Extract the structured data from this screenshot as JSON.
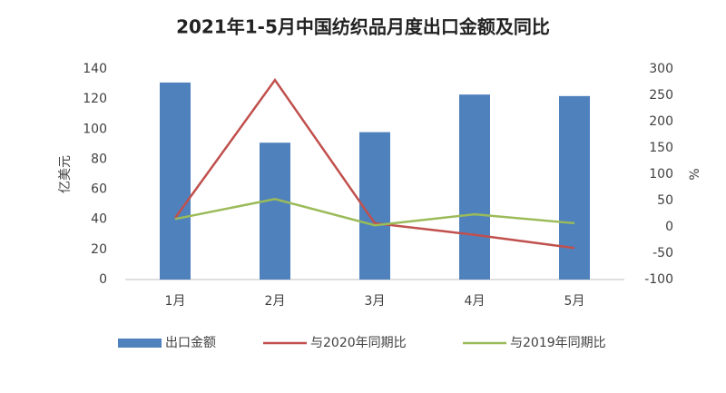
{
  "chart_data": {
    "type": "bar_line",
    "title": "2021年1-5月中国纺织品月度出口金额及同比",
    "y_label": "亿美元",
    "y2_label": "%",
    "categories": [
      "1月",
      "2月",
      "3月",
      "4月",
      "5月"
    ],
    "series": [
      {
        "name": "出口金额",
        "color": "#4f81bd",
        "type": "bar",
        "values": [
          131,
          91,
          98,
          123,
          122
        ]
      },
      {
        "name": "与2020年同期比",
        "color": "#c0504d",
        "type": "line",
        "axis": "y2",
        "values": [
          17,
          279,
          7,
          -15,
          -40
        ]
      },
      {
        "name": "与2019年同期比",
        "color": "#9bbb59",
        "type": "line",
        "axis": "y2",
        "values": [
          15,
          53,
          3,
          24,
          7
        ]
      }
    ],
    "ylim": [
      0,
      140
    ],
    "yticks": [
      0,
      20,
      40,
      60,
      80,
      100,
      120,
      140
    ],
    "y2lim": [
      -100,
      300
    ],
    "y2ticks": [
      -100,
      -50,
      0,
      50,
      100,
      150,
      200,
      250,
      300
    ],
    "legend": "bottom"
  }
}
